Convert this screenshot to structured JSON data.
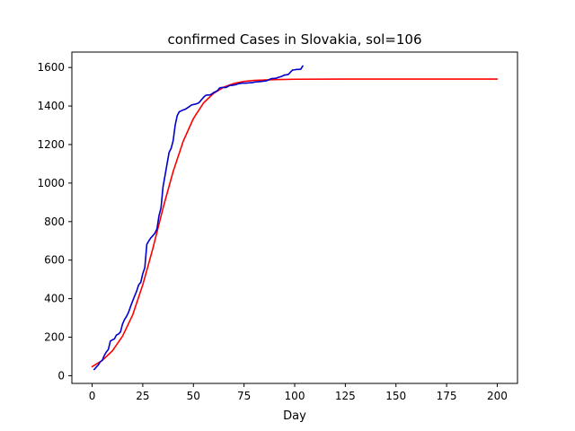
{
  "chart_data": {
    "type": "line",
    "title": "confirmed Cases in Slovakia, sol=106",
    "xlabel": "Day",
    "ylabel": "",
    "xlim": [
      -10,
      210
    ],
    "ylim": [
      -40,
      1680
    ],
    "xticks": [
      0,
      25,
      50,
      75,
      100,
      125,
      150,
      175,
      200
    ],
    "yticks": [
      0,
      200,
      400,
      600,
      800,
      1000,
      1200,
      1400,
      1600
    ],
    "grid": false,
    "series": [
      {
        "color": "#0000cd",
        "x": [
          1,
          2,
          3,
          4,
          5,
          6,
          7,
          8,
          9,
          10,
          11,
          12,
          13,
          14,
          15,
          16,
          17,
          18,
          19,
          20,
          21,
          22,
          23,
          24,
          25,
          26,
          27,
          28,
          29,
          30,
          31,
          32,
          33,
          34,
          35,
          36,
          37,
          38,
          39,
          40,
          41,
          42,
          43,
          44,
          45,
          46,
          47,
          48,
          49,
          50,
          51,
          52,
          53,
          54,
          55,
          56,
          57,
          58,
          59,
          60,
          61,
          62,
          63,
          64,
          65,
          66,
          67,
          68,
          69,
          70,
          71,
          72,
          73,
          74,
          75,
          76,
          77,
          78,
          79,
          80,
          81,
          82,
          83,
          84,
          85,
          86,
          87,
          88,
          89,
          90,
          91,
          92,
          93,
          94,
          95,
          96,
          97,
          98,
          99,
          100,
          101,
          102,
          103,
          104
        ],
        "y": [
          32,
          44,
          55,
          72,
          80,
          105,
          123,
          136,
          180,
          186,
          191,
          211,
          216,
          227,
          268,
          292,
          308,
          330,
          360,
          388,
          414,
          440,
          472,
          484,
          530,
          560,
          682,
          700,
          716,
          727,
          740,
          762,
          830,
          871,
          980,
          1040,
          1100,
          1159,
          1180,
          1220,
          1300,
          1350,
          1370,
          1375,
          1380,
          1383,
          1390,
          1397,
          1405,
          1408,
          1410,
          1413,
          1420,
          1433,
          1445,
          1455,
          1457,
          1457,
          1462,
          1470,
          1475,
          1481,
          1494,
          1496,
          1496,
          1496,
          1501,
          1507,
          1507,
          1509,
          1511,
          1515,
          1517,
          1519,
          1519,
          1519,
          1520,
          1521,
          1521,
          1524,
          1525,
          1526,
          1527,
          1528,
          1529,
          1531,
          1535,
          1540,
          1543,
          1543,
          1545,
          1549,
          1552,
          1556,
          1561,
          1562,
          1565,
          1577,
          1587,
          1588,
          1590,
          1590,
          1591,
          1608
        ]
      },
      {
        "color": "#ff0000",
        "x": [
          0,
          5,
          10,
          15,
          20,
          25,
          30,
          35,
          40,
          45,
          50,
          55,
          60,
          65,
          70,
          75,
          80,
          90,
          100,
          125,
          150,
          175,
          200
        ],
        "y": [
          47,
          79,
          129,
          205,
          315,
          472,
          661,
          870,
          1060,
          1218,
          1335,
          1416,
          1466,
          1498,
          1517,
          1528,
          1533,
          1537,
          1539,
          1540,
          1540,
          1540,
          1540
        ]
      }
    ]
  }
}
